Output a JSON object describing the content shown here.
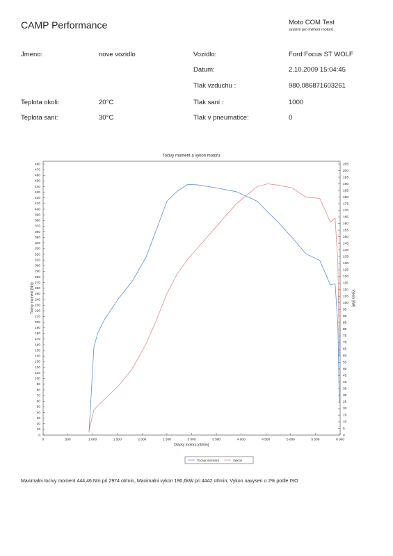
{
  "header": {
    "title": "CAMP Performance",
    "brand": "Moto COM Test",
    "tagline": "systém pro měření motorů"
  },
  "fields": {
    "name": {
      "label": "Jmeno:",
      "value": "nove vozidlo"
    },
    "vehicle": {
      "label": "Vozidlo:",
      "value": "Ford Focus ST WOLF"
    },
    "date": {
      "label": "Datum:",
      "value": "2.10.2009 15:04:45"
    },
    "air_pressure": {
      "label": "Tlak vzduchu :",
      "value": "980,086871603261"
    },
    "ambient_temp": {
      "label": "Teplota okoli:",
      "value": "20°C"
    },
    "intake_pressure": {
      "label": "Tlak sani :",
      "value": "1000"
    },
    "intake_temp": {
      "label": "Teplota sani:",
      "value": "30°C"
    },
    "tire_pressure": {
      "label": "Tlak v pneumatice:",
      "value": "0"
    }
  },
  "chart_data": {
    "type": "line",
    "title": "Tocivy moment a vykon motoru",
    "x_label": "Otacky motoru [ot/min]",
    "y_label": "Tocivy moment [Nm]",
    "y2_label": "Vykon [kW]",
    "x": [
      927,
      1025,
      1100,
      1236,
      1517,
      1798,
      2079,
      2289,
      2500,
      2711,
      2921,
      3132,
      3483,
      3904,
      4326,
      4537,
      4747,
      5028,
      5309,
      5590,
      5801,
      5899,
      5955,
      5983
    ],
    "series": [
      {
        "name": "Tocivy moment",
        "color": "#5b8fd6",
        "values": [
          5,
          155,
          180,
          204,
          241,
          272,
          315,
          364,
          414,
          432,
          444,
          443,
          438,
          431,
          414,
          395,
          377,
          350,
          321,
          309,
          266,
          268,
          192,
          57
        ]
      },
      {
        "name": "Vykon",
        "color": "#e48a8a",
        "axis": "y2",
        "values": [
          3,
          19,
          22,
          27,
          37,
          50,
          69,
          87,
          107,
          122,
          133,
          142,
          157,
          175,
          188,
          190,
          189,
          187,
          180,
          179,
          161,
          164,
          129,
          60
        ]
      }
    ],
    "xlim": [
      0,
      6000
    ],
    "xticks": [
      0,
      500,
      {
        "value": 1000,
        "label": "1 000"
      },
      {
        "value": 1500,
        "label": "1 500"
      },
      {
        "value": 2000,
        "label": "2 000"
      },
      {
        "value": 2500,
        "label": "2 500"
      },
      {
        "value": 3000,
        "label": "3 000"
      },
      {
        "value": 3500,
        "label": "3 500"
      },
      {
        "value": 4000,
        "label": "4 000"
      },
      {
        "value": 4500,
        "label": "4 500"
      },
      {
        "value": 5000,
        "label": "5 000"
      },
      {
        "value": 5500,
        "label": "5 500"
      },
      {
        "value": 6000,
        "label": "6 000"
      }
    ],
    "ylim": [
      0,
      480
    ],
    "yticks": [
      0,
      10,
      20,
      30,
      40,
      50,
      60,
      70,
      80,
      90,
      100,
      110,
      120,
      130,
      140,
      150,
      160,
      170,
      180,
      190,
      200,
      210,
      220,
      230,
      240,
      250,
      260,
      270,
      280,
      290,
      300,
      310,
      320,
      330,
      340,
      350,
      360,
      370,
      380,
      390,
      400,
      410,
      420,
      430,
      440,
      450,
      460,
      470,
      480
    ],
    "y2lim": [
      0,
      205
    ],
    "y2ticks": [
      0,
      5,
      10,
      15,
      20,
      25,
      30,
      35,
      40,
      45,
      50,
      55,
      60,
      65,
      70,
      75,
      80,
      85,
      90,
      95,
      100,
      105,
      110,
      115,
      120,
      125,
      130,
      135,
      140,
      145,
      150,
      155,
      160,
      165,
      170,
      175,
      180,
      185,
      190,
      195,
      200,
      205
    ],
    "grid": false,
    "legend": "bottom"
  },
  "footer": "Maximalni tocivy moment 444,46 Nm pri 2974 ot/min,  Maximalni vykon 190,6kW pri 4442 ot/min,  Vykon navysen o 2% podle ISO"
}
